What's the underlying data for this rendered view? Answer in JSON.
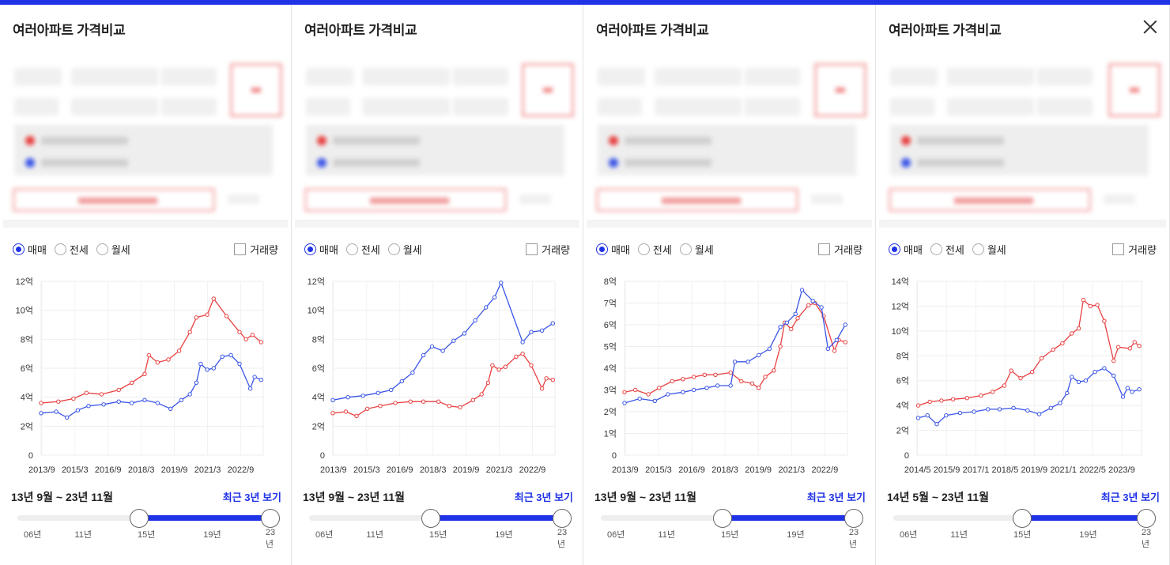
{
  "accent_color": "#1e32e6",
  "series_colors": {
    "red": "#e84040",
    "blue": "#3a55e6"
  },
  "panels": [
    {
      "title": "여러아파트 가격비교",
      "radios": [
        {
          "label": "매매",
          "checked": true
        },
        {
          "label": "전세",
          "checked": false
        },
        {
          "label": "월세",
          "checked": false
        }
      ],
      "checkbox_label": "거래량",
      "range_text": "13년 9월 ~ 23년 11월",
      "recent_link": "최근 3년 보기",
      "slider": {
        "ticks": [
          "06년",
          "11년",
          "15년",
          "19년",
          "23년"
        ],
        "start_fraction": 0.48,
        "end_fraction": 1.0
      },
      "chart_data": {
        "type": "line",
        "y_unit": "억",
        "y_ticks": [
          "0",
          "2억",
          "4억",
          "6억",
          "8억",
          "10억",
          "12억"
        ],
        "ylim": [
          0,
          12
        ],
        "x_tick_labels": [
          "2013/9",
          "2015/3",
          "2016/9",
          "2018/3",
          "2019/9",
          "2021/3",
          "2022/9"
        ],
        "xlim": [
          2013.7,
          2024.0
        ],
        "series": [
          {
            "color": "red",
            "points": [
              [
                2013.7,
                3.6
              ],
              [
                2014.5,
                3.7
              ],
              [
                2015.2,
                3.9
              ],
              [
                2015.8,
                4.3
              ],
              [
                2016.5,
                4.2
              ],
              [
                2017.3,
                4.5
              ],
              [
                2017.9,
                5.0
              ],
              [
                2018.5,
                5.6
              ],
              [
                2018.7,
                6.9
              ],
              [
                2019.1,
                6.4
              ],
              [
                2019.6,
                6.6
              ],
              [
                2020.1,
                7.2
              ],
              [
                2020.6,
                8.5
              ],
              [
                2020.9,
                9.5
              ],
              [
                2021.4,
                9.7
              ],
              [
                2021.7,
                10.8
              ],
              [
                2022.3,
                9.6
              ],
              [
                2022.9,
                8.5
              ],
              [
                2023.2,
                8.0
              ],
              [
                2023.5,
                8.3
              ],
              [
                2023.9,
                7.8
              ]
            ]
          },
          {
            "color": "blue",
            "points": [
              [
                2013.7,
                2.9
              ],
              [
                2014.4,
                3.0
              ],
              [
                2014.9,
                2.6
              ],
              [
                2015.4,
                3.1
              ],
              [
                2015.9,
                3.4
              ],
              [
                2016.6,
                3.5
              ],
              [
                2017.3,
                3.7
              ],
              [
                2017.9,
                3.6
              ],
              [
                2018.5,
                3.8
              ],
              [
                2019.1,
                3.6
              ],
              [
                2019.7,
                3.2
              ],
              [
                2020.2,
                3.8
              ],
              [
                2020.6,
                4.2
              ],
              [
                2020.9,
                5.0
              ],
              [
                2021.1,
                6.3
              ],
              [
                2021.4,
                5.9
              ],
              [
                2021.7,
                6.0
              ],
              [
                2022.1,
                6.8
              ],
              [
                2022.5,
                6.9
              ],
              [
                2022.9,
                6.3
              ],
              [
                2023.4,
                4.6
              ],
              [
                2023.6,
                5.4
              ],
              [
                2023.9,
                5.2
              ]
            ]
          }
        ]
      }
    },
    {
      "title": "여러아파트 가격비교",
      "radios": [
        {
          "label": "매매",
          "checked": true
        },
        {
          "label": "전세",
          "checked": false
        },
        {
          "label": "월세",
          "checked": false
        }
      ],
      "checkbox_label": "거래량",
      "range_text": "13년 9월 ~ 23년 11월",
      "recent_link": "최근 3년 보기",
      "slider": {
        "ticks": [
          "06년",
          "11년",
          "15년",
          "19년",
          "23년"
        ],
        "start_fraction": 0.48,
        "end_fraction": 1.0
      },
      "chart_data": {
        "type": "line",
        "y_unit": "억",
        "y_ticks": [
          "0",
          "2억",
          "4억",
          "6억",
          "8억",
          "10억",
          "12억"
        ],
        "ylim": [
          0,
          12
        ],
        "x_tick_labels": [
          "2013/9",
          "2015/3",
          "2016/9",
          "2018/3",
          "2019/9",
          "2021/3",
          "2022/9"
        ],
        "xlim": [
          2013.7,
          2024.0
        ],
        "series": [
          {
            "color": "red",
            "points": [
              [
                2013.7,
                2.9
              ],
              [
                2014.3,
                3.0
              ],
              [
                2014.8,
                2.7
              ],
              [
                2015.3,
                3.2
              ],
              [
                2015.9,
                3.4
              ],
              [
                2016.6,
                3.6
              ],
              [
                2017.3,
                3.7
              ],
              [
                2017.9,
                3.7
              ],
              [
                2018.6,
                3.7
              ],
              [
                2019.1,
                3.4
              ],
              [
                2019.6,
                3.3
              ],
              [
                2020.2,
                3.8
              ],
              [
                2020.6,
                4.2
              ],
              [
                2020.9,
                5.0
              ],
              [
                2021.1,
                6.2
              ],
              [
                2021.4,
                5.9
              ],
              [
                2021.7,
                6.1
              ],
              [
                2022.2,
                6.8
              ],
              [
                2022.5,
                7.0
              ],
              [
                2022.9,
                6.2
              ],
              [
                2023.4,
                4.6
              ],
              [
                2023.6,
                5.3
              ],
              [
                2023.9,
                5.2
              ]
            ]
          },
          {
            "color": "blue",
            "points": [
              [
                2013.7,
                3.8
              ],
              [
                2014.4,
                4.0
              ],
              [
                2015.1,
                4.1
              ],
              [
                2015.8,
                4.3
              ],
              [
                2016.4,
                4.5
              ],
              [
                2016.9,
                5.1
              ],
              [
                2017.4,
                5.7
              ],
              [
                2017.9,
                6.9
              ],
              [
                2018.3,
                7.5
              ],
              [
                2018.8,
                7.2
              ],
              [
                2019.3,
                7.9
              ],
              [
                2019.8,
                8.4
              ],
              [
                2020.3,
                9.3
              ],
              [
                2020.8,
                10.2
              ],
              [
                2021.2,
                10.9
              ],
              [
                2021.5,
                11.9
              ],
              [
                2022.5,
                7.8
              ],
              [
                2022.9,
                8.5
              ],
              [
                2023.4,
                8.6
              ],
              [
                2023.9,
                9.1
              ]
            ]
          }
        ]
      }
    },
    {
      "title": "여러아파트 가격비교",
      "radios": [
        {
          "label": "매매",
          "checked": true
        },
        {
          "label": "전세",
          "checked": false
        },
        {
          "label": "월세",
          "checked": false
        }
      ],
      "checkbox_label": "거래량",
      "range_text": "13년 9월 ~ 23년 11월",
      "recent_link": "최근 3년 보기",
      "slider": {
        "ticks": [
          "06년",
          "11년",
          "15년",
          "19년",
          "23년"
        ],
        "start_fraction": 0.48,
        "end_fraction": 1.0
      },
      "chart_data": {
        "type": "line",
        "y_unit": "억",
        "y_ticks": [
          "0",
          "1억",
          "2억",
          "3억",
          "4억",
          "5억",
          "6억",
          "7억",
          "8억"
        ],
        "ylim": [
          0,
          8
        ],
        "x_tick_labels": [
          "2013/9",
          "2015/3",
          "2016/9",
          "2018/3",
          "2019/9",
          "2021/3",
          "2022/9"
        ],
        "xlim": [
          2013.7,
          2024.0
        ],
        "series": [
          {
            "color": "red",
            "points": [
              [
                2013.7,
                2.9
              ],
              [
                2014.2,
                3.0
              ],
              [
                2014.8,
                2.8
              ],
              [
                2015.3,
                3.1
              ],
              [
                2015.9,
                3.4
              ],
              [
                2016.4,
                3.5
              ],
              [
                2016.9,
                3.6
              ],
              [
                2017.4,
                3.7
              ],
              [
                2017.9,
                3.7
              ],
              [
                2018.6,
                3.8
              ],
              [
                2019.1,
                3.4
              ],
              [
                2019.6,
                3.3
              ],
              [
                2019.9,
                3.1
              ],
              [
                2020.2,
                3.6
              ],
              [
                2020.6,
                3.9
              ],
              [
                2020.9,
                5.0
              ],
              [
                2021.1,
                6.1
              ],
              [
                2021.4,
                5.8
              ],
              [
                2021.7,
                6.3
              ],
              [
                2022.2,
                6.9
              ],
              [
                2022.5,
                7.0
              ],
              [
                2022.9,
                6.4
              ],
              [
                2023.4,
                4.8
              ],
              [
                2023.6,
                5.3
              ],
              [
                2023.9,
                5.2
              ]
            ]
          },
          {
            "color": "blue",
            "points": [
              [
                2013.7,
                2.4
              ],
              [
                2014.4,
                2.6
              ],
              [
                2015.1,
                2.5
              ],
              [
                2015.7,
                2.8
              ],
              [
                2016.4,
                2.9
              ],
              [
                2016.9,
                3.0
              ],
              [
                2017.5,
                3.1
              ],
              [
                2018.0,
                3.2
              ],
              [
                2018.6,
                3.2
              ],
              [
                2018.8,
                4.3
              ],
              [
                2019.4,
                4.3
              ],
              [
                2019.9,
                4.6
              ],
              [
                2020.4,
                4.9
              ],
              [
                2020.9,
                5.9
              ],
              [
                2021.2,
                6.1
              ],
              [
                2021.6,
                6.5
              ],
              [
                2021.9,
                7.6
              ],
              [
                2022.4,
                7.1
              ],
              [
                2022.8,
                6.8
              ],
              [
                2023.1,
                4.9
              ],
              [
                2023.5,
                5.3
              ],
              [
                2023.9,
                6.0
              ]
            ]
          }
        ]
      }
    },
    {
      "title": "여러아파트 가격비교",
      "radios": [
        {
          "label": "매매",
          "checked": true
        },
        {
          "label": "전세",
          "checked": false
        },
        {
          "label": "월세",
          "checked": false
        }
      ],
      "checkbox_label": "거래량",
      "range_text": "14년 5월 ~ 23년 11월",
      "recent_link": "최근 3년 보기",
      "slider": {
        "ticks": [
          "06년",
          "11년",
          "15년",
          "19년",
          "23년"
        ],
        "start_fraction": 0.51,
        "end_fraction": 1.0
      },
      "chart_data": {
        "type": "line",
        "y_unit": "억",
        "y_ticks": [
          "0",
          "2억",
          "4억",
          "6억",
          "8억",
          "10억",
          "12억",
          "14억"
        ],
        "ylim": [
          0,
          14
        ],
        "x_tick_labels": [
          "2014/5",
          "2015/9",
          "2017/1",
          "2018/5",
          "2019/9",
          "2021/1",
          "2022/5",
          "2023/9"
        ],
        "xlim": [
          2014.35,
          2024.0
        ],
        "series": [
          {
            "color": "red",
            "points": [
              [
                2014.4,
                4.0
              ],
              [
                2014.9,
                4.3
              ],
              [
                2015.4,
                4.4
              ],
              [
                2015.9,
                4.5
              ],
              [
                2016.5,
                4.6
              ],
              [
                2017.1,
                4.8
              ],
              [
                2017.6,
                5.1
              ],
              [
                2018.1,
                5.6
              ],
              [
                2018.4,
                6.8
              ],
              [
                2018.8,
                6.2
              ],
              [
                2019.3,
                6.7
              ],
              [
                2019.7,
                7.8
              ],
              [
                2020.2,
                8.5
              ],
              [
                2020.6,
                9.0
              ],
              [
                2021.0,
                9.8
              ],
              [
                2021.3,
                10.2
              ],
              [
                2021.5,
                12.5
              ],
              [
                2021.8,
                12.0
              ],
              [
                2022.1,
                12.1
              ],
              [
                2022.4,
                10.8
              ],
              [
                2022.8,
                7.6
              ],
              [
                2023.0,
                8.7
              ],
              [
                2023.5,
                8.6
              ],
              [
                2023.7,
                9.1
              ],
              [
                2023.9,
                8.8
              ]
            ]
          },
          {
            "color": "blue",
            "points": [
              [
                2014.4,
                3.0
              ],
              [
                2014.8,
                3.2
              ],
              [
                2015.2,
                2.5
              ],
              [
                2015.6,
                3.2
              ],
              [
                2016.2,
                3.4
              ],
              [
                2016.8,
                3.5
              ],
              [
                2017.4,
                3.7
              ],
              [
                2017.9,
                3.7
              ],
              [
                2018.5,
                3.8
              ],
              [
                2019.1,
                3.6
              ],
              [
                2019.6,
                3.3
              ],
              [
                2020.1,
                3.8
              ],
              [
                2020.5,
                4.2
              ],
              [
                2020.8,
                5.0
              ],
              [
                2021.0,
                6.3
              ],
              [
                2021.3,
                5.9
              ],
              [
                2021.6,
                6.0
              ],
              [
                2022.0,
                6.7
              ],
              [
                2022.4,
                7.0
              ],
              [
                2022.8,
                6.4
              ],
              [
                2023.2,
                4.7
              ],
              [
                2023.4,
                5.4
              ],
              [
                2023.6,
                5.1
              ],
              [
                2023.9,
                5.3
              ]
            ]
          }
        ]
      }
    }
  ]
}
